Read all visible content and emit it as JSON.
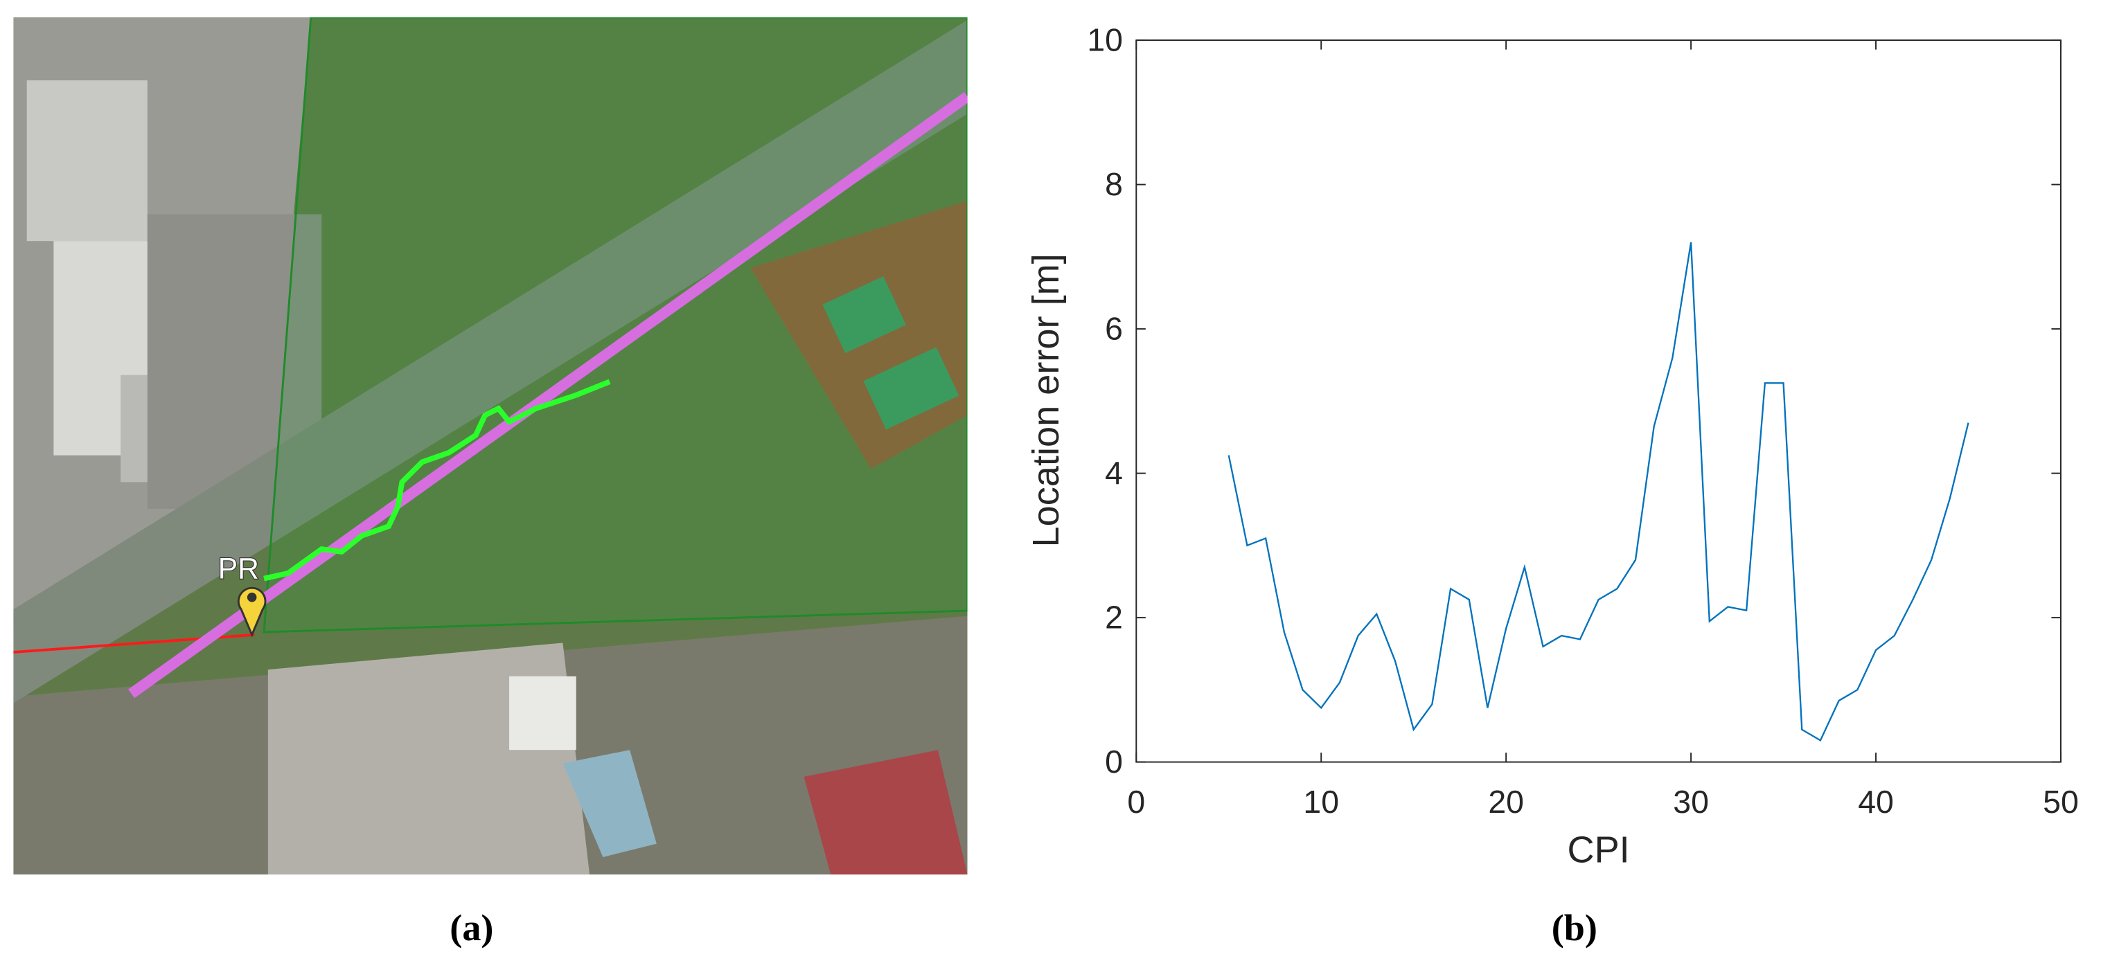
{
  "map": {
    "marker_label": "PR",
    "caption": "(a)"
  },
  "chart_data": {
    "type": "line",
    "caption": "(b)",
    "xlabel": "CPI",
    "ylabel": "Location error [m]",
    "x": [
      5,
      6,
      7,
      8,
      9,
      10,
      11,
      12,
      13,
      14,
      15,
      16,
      17,
      18,
      19,
      20,
      21,
      22,
      23,
      24,
      25,
      26,
      27,
      28,
      29,
      30,
      31,
      32,
      33,
      34,
      35,
      36,
      37,
      38,
      39,
      40,
      41,
      42,
      43,
      44,
      45
    ],
    "series": [
      {
        "name": "Location error",
        "color": "#0072bd",
        "values": [
          4.25,
          3.0,
          3.1,
          1.8,
          1.0,
          0.75,
          1.1,
          1.75,
          2.05,
          1.4,
          0.45,
          0.8,
          2.4,
          2.25,
          0.75,
          1.85,
          2.7,
          1.6,
          1.75,
          1.7,
          2.25,
          2.4,
          2.8,
          4.65,
          5.6,
          7.2,
          1.95,
          2.15,
          2.1,
          5.25,
          5.25,
          0.45,
          0.3,
          0.85,
          1.0,
          1.55,
          1.75,
          2.25,
          2.8,
          3.65,
          4.7
        ]
      }
    ],
    "xlim": [
      0,
      50
    ],
    "xticks": [
      0,
      10,
      20,
      30,
      40,
      50
    ],
    "ylim": [
      0,
      10
    ],
    "yticks": [
      0,
      2,
      4,
      6,
      8,
      10
    ]
  }
}
